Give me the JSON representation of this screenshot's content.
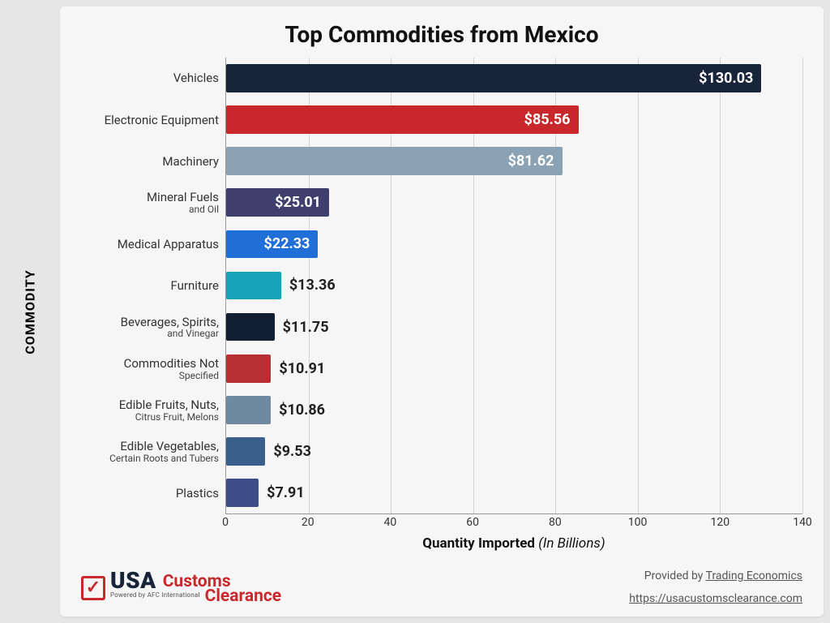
{
  "title": "Top Commodities from Mexico",
  "y_axis_title": "COMMODITY",
  "x_axis_title_bold": "Quantity Imported ",
  "x_axis_title_ital": "(In Billions)",
  "chart": {
    "type": "bar-horizontal",
    "xlim": [
      0,
      140
    ],
    "xtick_step": 20,
    "xticks": [
      0,
      20,
      40,
      60,
      80,
      100,
      120,
      140
    ],
    "grid_color": "#d4d4d4",
    "background": "#f6f6f6",
    "bar_label_fontsize": 18,
    "axis_label_fontsize": 15,
    "items": [
      {
        "label": "Vehicles",
        "sublabel": "",
        "value": 130.03,
        "value_text": "$130.03",
        "color": "#17243a",
        "label_inside": true
      },
      {
        "label": "Electronic Equipment",
        "sublabel": "",
        "value": 85.56,
        "value_text": "$85.56",
        "color": "#c8282b",
        "label_inside": true
      },
      {
        "label": "Machinery",
        "sublabel": "",
        "value": 81.62,
        "value_text": "$81.62",
        "color": "#8aa2b3",
        "label_inside": true
      },
      {
        "label": "Mineral Fuels",
        "sublabel": "and Oil",
        "value": 25.01,
        "value_text": "$25.01",
        "color": "#3f3f6e",
        "label_inside": true
      },
      {
        "label": "Medical Apparatus",
        "sublabel": "",
        "value": 22.33,
        "value_text": "$22.33",
        "color": "#1f6fd6",
        "label_inside": true
      },
      {
        "label": "Furniture",
        "sublabel": "",
        "value": 13.36,
        "value_text": "$13.36",
        "color": "#16a2b8",
        "label_inside": false
      },
      {
        "label": "Beverages, Spirits,",
        "sublabel": "and Vinegar",
        "value": 11.75,
        "value_text": "$11.75",
        "color": "#121f33",
        "label_inside": false
      },
      {
        "label": "Commodities Not",
        "sublabel": "Specified",
        "value": 10.91,
        "value_text": "$10.91",
        "color": "#b93034",
        "label_inside": false
      },
      {
        "label": "Edible Fruits, Nuts,",
        "sublabel": "Citrus Fruit, Melons",
        "value": 10.86,
        "value_text": "$10.86",
        "color": "#6f8aa0",
        "label_inside": false
      },
      {
        "label": "Edible Vegetables,",
        "sublabel": "Certain Roots and Tubers",
        "value": 9.53,
        "value_text": "$9.53",
        "color": "#3a5f8a",
        "label_inside": false
      },
      {
        "label": "Plastics",
        "sublabel": "",
        "value": 7.91,
        "value_text": "$7.91",
        "color": "#3c4d87",
        "label_inside": false
      }
    ]
  },
  "footer": {
    "provided_prefix": "Provided by ",
    "provided_source": "Trading Economics",
    "url": "https://usacustomsclearance.com",
    "logo_usa": "USA",
    "logo_customs": "Customs",
    "logo_clearance": "Clearance",
    "logo_sub": "Powered by AFC International"
  }
}
